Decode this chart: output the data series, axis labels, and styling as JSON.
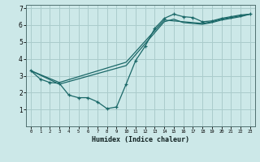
{
  "title": "",
  "xlabel": "Humidex (Indice chaleur)",
  "bg_color": "#cce8e8",
  "grid_color": "#aacccc",
  "line_color": "#1a6868",
  "xlim": [
    -0.5,
    23.5
  ],
  "ylim": [
    0,
    7.2
  ],
  "xticks": [
    0,
    1,
    2,
    3,
    4,
    5,
    6,
    7,
    8,
    9,
    10,
    11,
    12,
    13,
    14,
    15,
    16,
    17,
    18,
    19,
    20,
    21,
    22,
    23
  ],
  "yticks": [
    1,
    2,
    3,
    4,
    5,
    6,
    7
  ],
  "line1_x": [
    0,
    1,
    2,
    3,
    4,
    5,
    6,
    7,
    8,
    9,
    10,
    11,
    12,
    13,
    14,
    15,
    16,
    17,
    18,
    19,
    20,
    21,
    22,
    23
  ],
  "line1_y": [
    3.3,
    2.8,
    2.6,
    2.55,
    1.85,
    1.7,
    1.7,
    1.45,
    1.05,
    1.15,
    2.5,
    3.9,
    4.75,
    5.8,
    6.4,
    6.65,
    6.5,
    6.45,
    6.2,
    6.25,
    6.4,
    6.5,
    6.6,
    6.65
  ],
  "line2_x": [
    0,
    3,
    10,
    14,
    16,
    17,
    18,
    19,
    20,
    21,
    22,
    23
  ],
  "line2_y": [
    3.3,
    2.6,
    3.8,
    6.3,
    6.2,
    6.15,
    6.1,
    6.2,
    6.35,
    6.45,
    6.55,
    6.65
  ],
  "line3_x": [
    0,
    3,
    10,
    14,
    15,
    16,
    17,
    18,
    19,
    20,
    21,
    22,
    23
  ],
  "line3_y": [
    3.3,
    2.5,
    3.6,
    6.2,
    6.35,
    6.15,
    6.1,
    6.05,
    6.15,
    6.3,
    6.4,
    6.5,
    6.65
  ]
}
